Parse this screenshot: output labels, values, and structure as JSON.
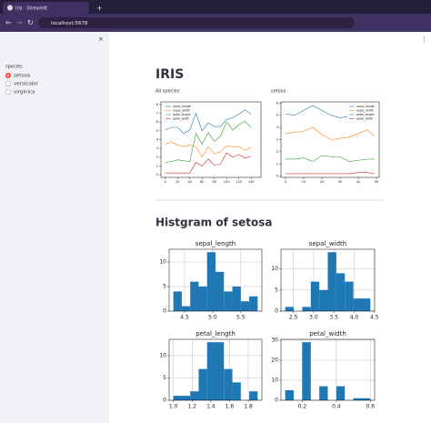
{
  "browser": {
    "tab_title": "Iris · Streamlit",
    "url": "localhost:5678"
  },
  "sidebar": {
    "label": "species",
    "options": [
      "setosa",
      "versicolor",
      "virginica"
    ],
    "selected_index": 0
  },
  "main": {
    "title": "IRIS",
    "heading": "Histgram of setosa"
  },
  "charts": [
    {
      "type": "line",
      "caption": "All species",
      "x": [
        0,
        10,
        20,
        30,
        40,
        50,
        60,
        70,
        80,
        90,
        100,
        110,
        120,
        130,
        140
      ],
      "xlim": [
        -7,
        156
      ],
      "xticks": [
        0,
        20,
        40,
        60,
        80,
        100,
        120,
        140
      ],
      "ylim": [
        -0.3,
        8.3
      ],
      "yticks": [
        0,
        1,
        2,
        3,
        4,
        5,
        6,
        7,
        8
      ],
      "legend": "upper left",
      "series": [
        {
          "name": "sepal_length",
          "color": "#1f77b4",
          "values": [
            5.1,
            5.4,
            5.4,
            4.7,
            5.1,
            7.0,
            5.0,
            5.9,
            5.5,
            5.5,
            6.3,
            6.5,
            6.9,
            7.4,
            6.9
          ]
        },
        {
          "name": "sepal_width",
          "color": "#ff7f0e",
          "values": [
            3.5,
            3.7,
            3.4,
            3.2,
            3.4,
            3.2,
            2.0,
            3.2,
            2.4,
            2.6,
            3.3,
            3.2,
            3.2,
            2.8,
            3.1
          ]
        },
        {
          "name": "petal_length",
          "color": "#2ca02c",
          "values": [
            1.4,
            1.5,
            1.7,
            1.6,
            1.5,
            4.7,
            3.5,
            4.8,
            3.8,
            4.4,
            6.0,
            5.1,
            5.7,
            6.1,
            5.4
          ]
        },
        {
          "name": "petal_width",
          "color": "#d62728",
          "values": [
            0.2,
            0.2,
            0.2,
            0.2,
            0.2,
            1.4,
            1.0,
            1.8,
            1.1,
            1.2,
            2.5,
            2.0,
            2.3,
            1.9,
            2.1
          ]
        }
      ]
    },
    {
      "type": "line",
      "caption": "setosa",
      "x": [
        0,
        5,
        10,
        15,
        20,
        25,
        30,
        35,
        40,
        45,
        49
      ],
      "xlim": [
        -2.5,
        51.5
      ],
      "xticks": [
        0,
        10,
        20,
        30,
        40,
        50
      ],
      "ylim": [
        -0.1,
        6.1
      ],
      "yticks": [
        0,
        1,
        2,
        3,
        4,
        5,
        6
      ],
      "legend": "upper right",
      "series": [
        {
          "name": "sepal_length",
          "color": "#1f77b4",
          "values": [
            5.1,
            5.0,
            5.4,
            5.8,
            5.4,
            5.0,
            4.8,
            4.9,
            5.0,
            5.1,
            5.0
          ]
        },
        {
          "name": "sepal_width",
          "color": "#ff7f0e",
          "values": [
            3.5,
            3.6,
            3.7,
            4.0,
            3.4,
            3.0,
            3.1,
            3.2,
            3.5,
            3.8,
            3.3
          ]
        },
        {
          "name": "petal_length",
          "color": "#2ca02c",
          "values": [
            1.4,
            1.4,
            1.5,
            1.2,
            1.7,
            1.6,
            1.6,
            1.2,
            1.3,
            1.4,
            1.4
          ]
        },
        {
          "name": "petal_width",
          "color": "#d62728",
          "values": [
            0.2,
            0.2,
            0.2,
            0.2,
            0.2,
            0.2,
            0.2,
            0.2,
            0.3,
            0.3,
            0.2
          ]
        }
      ]
    },
    {
      "type": "histogram",
      "title": "sepal_length",
      "color": "#1f77b4",
      "grid": true,
      "bins": [
        4.3,
        4.45,
        4.6,
        4.75,
        4.9,
        5.05,
        5.2,
        5.35,
        5.5,
        5.65,
        5.8
      ],
      "counts": [
        4,
        1,
        6,
        5,
        12,
        8,
        4,
        5,
        2,
        3
      ],
      "xlim": [
        4.225,
        5.875
      ],
      "xticks": [
        4.5,
        {
          "value": 5,
          "label": "5.0"
        },
        5.5
      ],
      "ylim": [
        0,
        12.6
      ],
      "yticks": [
        0,
        5,
        10
      ]
    },
    {
      "type": "histogram",
      "title": "sepal_width",
      "color": "#1f77b4",
      "grid": true,
      "bins": [
        2.3,
        2.51,
        2.72,
        2.93,
        3.14,
        3.35,
        3.56,
        3.77,
        3.98,
        4.19,
        4.4
      ],
      "counts": [
        1,
        0,
        1,
        7,
        5,
        14,
        9,
        7,
        3,
        3
      ],
      "xlim": [
        2.195,
        4.505
      ],
      "xticks": [
        2.5,
        {
          "value": 3,
          "label": "3.0"
        },
        3.5,
        {
          "value": 4,
          "label": "4.0"
        },
        4.5
      ],
      "ylim": [
        0,
        14.7
      ],
      "yticks": [
        0,
        5,
        10
      ]
    },
    {
      "type": "histogram",
      "title": "petal_length",
      "color": "#1f77b4",
      "grid": true,
      "bins": [
        1.0,
        1.09,
        1.18,
        1.27,
        1.36,
        1.45,
        1.54,
        1.63,
        1.72,
        1.81,
        1.9
      ],
      "counts": [
        1,
        1,
        2,
        7,
        13,
        13,
        7,
        4,
        0,
        2
      ],
      "xlim": [
        0.955,
        1.945
      ],
      "xticks": [
        {
          "value": 1,
          "label": "1.0"
        },
        1.2,
        1.4,
        1.6,
        1.8
      ],
      "ylim": [
        0,
        13.65
      ],
      "yticks": [
        0,
        5,
        10
      ]
    },
    {
      "type": "histogram",
      "title": "petal_width",
      "color": "#1f77b4",
      "grid": true,
      "bins": [
        0.1,
        0.15,
        0.2,
        0.25,
        0.3,
        0.35,
        0.4,
        0.45,
        0.5,
        0.55,
        0.6
      ],
      "counts": [
        5,
        0,
        29,
        0,
        7,
        0,
        7,
        0,
        1,
        1
      ],
      "xlim": [
        0.075,
        0.625
      ],
      "xticks": [
        0.2,
        0.4,
        0.6
      ],
      "ylim": [
        0,
        30.45
      ],
      "yticks": [
        0,
        10,
        20,
        30
      ]
    }
  ]
}
